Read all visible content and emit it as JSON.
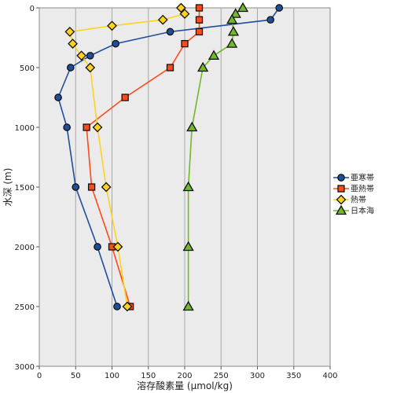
{
  "chart_data": {
    "type": "line",
    "xlabel": "溶存酸素量 (μmol/kg)",
    "ylabel": "水深 (m)",
    "xlim": [
      0,
      400
    ],
    "ylim": [
      0,
      3000
    ],
    "y_inverted": true,
    "x_ticks": [
      0,
      50,
      100,
      150,
      200,
      250,
      300,
      350,
      400
    ],
    "y_ticks": [
      0,
      500,
      1000,
      1500,
      2000,
      2500,
      3000
    ],
    "grid": "vertical",
    "legend_position": "right",
    "series": [
      {
        "name": "亜寒帯",
        "color": "#1f4e9c",
        "marker": "circle",
        "points": [
          [
            330,
            0
          ],
          [
            318,
            100
          ],
          [
            180,
            200
          ],
          [
            105,
            300
          ],
          [
            70,
            400
          ],
          [
            43,
            500
          ],
          [
            26,
            750
          ],
          [
            38,
            1000
          ],
          [
            50,
            1500
          ],
          [
            80,
            2000
          ],
          [
            107,
            2500
          ]
        ]
      },
      {
        "name": "亜熱帯",
        "color": "#ff4a1a",
        "marker": "square",
        "points": [
          [
            220,
            0
          ],
          [
            220,
            100
          ],
          [
            220,
            200
          ],
          [
            200,
            300
          ],
          [
            180,
            500
          ],
          [
            118,
            750
          ],
          [
            65,
            1000
          ],
          [
            72,
            1500
          ],
          [
            100,
            2000
          ],
          [
            125,
            2500
          ]
        ]
      },
      {
        "name": "熱帯",
        "color": "#ffd21f",
        "marker": "diamond",
        "points": [
          [
            195,
            0
          ],
          [
            200,
            50
          ],
          [
            170,
            100
          ],
          [
            100,
            150
          ],
          [
            42,
            200
          ],
          [
            46,
            300
          ],
          [
            58,
            400
          ],
          [
            70,
            500
          ],
          [
            80,
            1000
          ],
          [
            92,
            1500
          ],
          [
            108,
            2000
          ],
          [
            121,
            2500
          ]
        ]
      },
      {
        "name": "日本海",
        "color": "#72b82a",
        "marker": "triangle",
        "points": [
          [
            280,
            0
          ],
          [
            270,
            50
          ],
          [
            265,
            100
          ],
          [
            267,
            200
          ],
          [
            265,
            300
          ],
          [
            240,
            400
          ],
          [
            225,
            500
          ],
          [
            210,
            1000
          ],
          [
            205,
            1500
          ],
          [
            205,
            2000
          ],
          [
            205,
            2500
          ]
        ]
      }
    ]
  }
}
